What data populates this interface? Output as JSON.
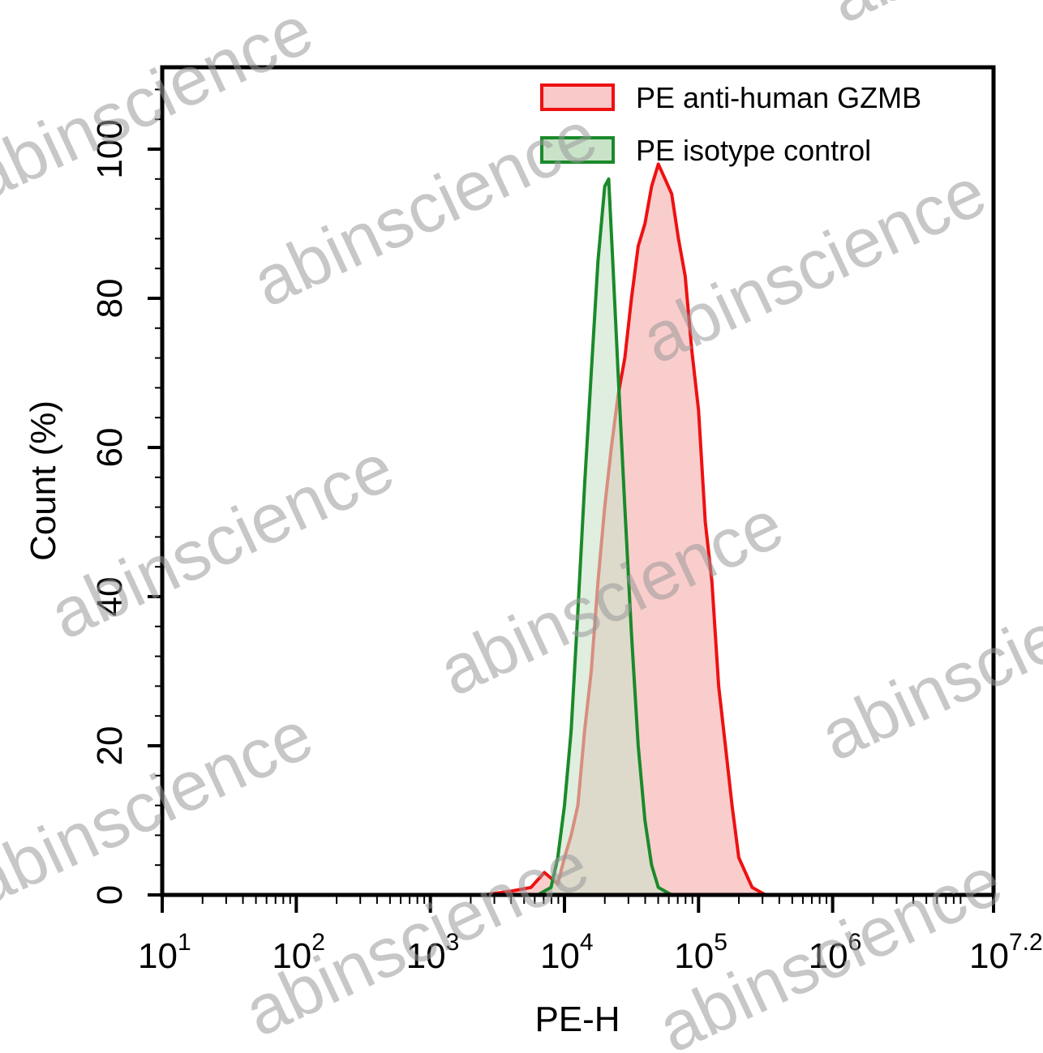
{
  "chart_data": {
    "type": "area",
    "xlabel": "PE-H",
    "ylabel": "Count (%)",
    "x_scale": "log10",
    "xlim_log10": [
      1,
      7.2
    ],
    "ylim": [
      0,
      110
    ],
    "x_ticks": [
      {
        "base": "10",
        "exp": "1",
        "log10": 1
      },
      {
        "base": "10",
        "exp": "2",
        "log10": 2
      },
      {
        "base": "10",
        "exp": "3",
        "log10": 3
      },
      {
        "base": "10",
        "exp": "4",
        "log10": 4
      },
      {
        "base": "10",
        "exp": "5",
        "log10": 5
      },
      {
        "base": "10",
        "exp": "6",
        "log10": 6
      },
      {
        "base": "10",
        "exp": "7.2",
        "log10": 7.2
      }
    ],
    "y_ticks": [
      "0",
      "20",
      "40",
      "60",
      "80",
      "100"
    ],
    "legend_position": "top-right",
    "series": [
      {
        "name": "PE anti-human GZMB",
        "stroke": "#ee1111",
        "fill": "#f9c8c8",
        "x_log10": [
          3.4,
          3.6,
          3.75,
          3.85,
          3.95,
          4.0,
          4.05,
          4.1,
          4.15,
          4.2,
          4.25,
          4.3,
          4.35,
          4.4,
          4.45,
          4.5,
          4.55,
          4.6,
          4.65,
          4.7,
          4.75,
          4.8,
          4.85,
          4.9,
          4.95,
          5.0,
          5.05,
          5.1,
          5.15,
          5.2,
          5.25,
          5.3,
          5.4,
          5.5
        ],
        "y": [
          0,
          0.5,
          1,
          3,
          1.5,
          5,
          8,
          12,
          22,
          30,
          42,
          52,
          60,
          67,
          72,
          80,
          87,
          90,
          95,
          98,
          96,
          94,
          88,
          83,
          73,
          65,
          50,
          42,
          28,
          20,
          12,
          5,
          1,
          0
        ]
      },
      {
        "name": "PE  isotype control",
        "stroke": "#1a8a2a",
        "fill": "#c9e3c9",
        "x_log10": [
          3.8,
          3.9,
          3.95,
          4.0,
          4.05,
          4.1,
          4.15,
          4.2,
          4.25,
          4.3,
          4.33,
          4.36,
          4.4,
          4.45,
          4.5,
          4.55,
          4.6,
          4.65,
          4.7,
          4.8
        ],
        "y": [
          0,
          1,
          5,
          12,
          22,
          38,
          55,
          70,
          85,
          95,
          96,
          85,
          70,
          52,
          35,
          20,
          10,
          4,
          1,
          0
        ]
      }
    ]
  },
  "watermark": "abinscience"
}
